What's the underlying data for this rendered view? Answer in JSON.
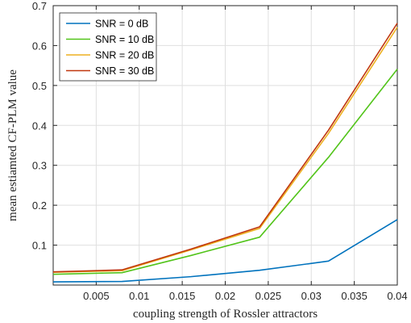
{
  "chart_data": {
    "type": "line",
    "title": "",
    "xlabel": "coupling strength of Rossler attractors",
    "ylabel": "mean estiamted CF-PLM value",
    "xlim": [
      0,
      0.04
    ],
    "ylim": [
      0,
      0.7
    ],
    "xticks": [
      0.005,
      0.01,
      0.015,
      0.02,
      0.025,
      0.03,
      0.035,
      0.04
    ],
    "xtick_labels": [
      "0.005",
      "0.01",
      "0.015",
      "0.02",
      "0.025",
      "0.03",
      "0.035",
      "0.04"
    ],
    "yticks": [
      0.1,
      0.2,
      0.3,
      0.4,
      0.5,
      0.6,
      0.7
    ],
    "ytick_labels": [
      "0.1",
      "0.2",
      "0.3",
      "0.4",
      "0.5",
      "0.6",
      "0.7"
    ],
    "grid": true,
    "legend_position": "top-left",
    "x": [
      0,
      0.008,
      0.016,
      0.024,
      0.032,
      0.04
    ],
    "series": [
      {
        "name": "SNR = 0 dB",
        "color": "#0072BD",
        "values": [
          0.008,
          0.009,
          0.021,
          0.037,
          0.06,
          0.164
        ]
      },
      {
        "name": "SNR = 10 dB",
        "color": "#52C41A",
        "values": [
          0.027,
          0.031,
          0.074,
          0.12,
          0.32,
          0.541
        ]
      },
      {
        "name": "SNR = 20 dB",
        "color": "#EDB120",
        "values": [
          0.032,
          0.036,
          0.088,
          0.142,
          0.38,
          0.646
        ]
      },
      {
        "name": "SNR = 30 dB",
        "color": "#C0360E",
        "values": [
          0.033,
          0.038,
          0.09,
          0.146,
          0.388,
          0.656
        ]
      }
    ]
  }
}
